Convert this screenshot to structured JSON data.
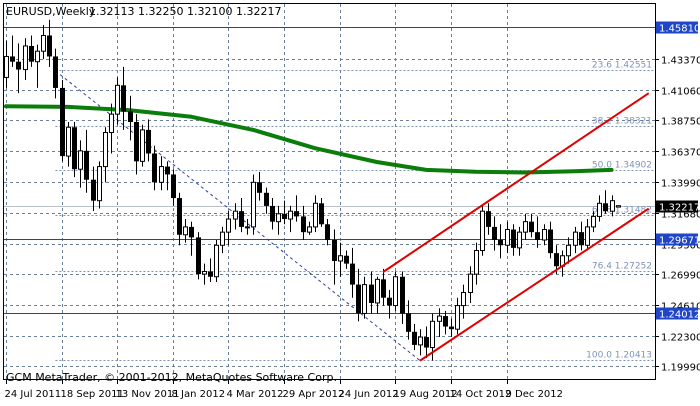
{
  "header": {
    "symbol": "EURUSD,Weekly",
    "ohlc": "1.32113 1.32250 1.32100 1.32217"
  },
  "footer": {
    "copyright": "GCM MetaTrader, © 2001-2012, MetaQuotes Software Corp."
  },
  "colors": {
    "background": "#ffffff",
    "grid": "#6b8096",
    "candle": "#000000",
    "moving_average": "#0a7d0a",
    "channel": "#e00000",
    "horizontal_line": "#2f3fa0",
    "fib_line": "#7f93b7",
    "price_box": "#1f46c8"
  },
  "chart_data": {
    "type": "candlestick",
    "symbol": "EURUSD",
    "timeframe": "Weekly",
    "last_bar": {
      "open": 1.32113,
      "high": 1.3225,
      "low": 1.321,
      "close": 1.32217
    },
    "ylim": [
      1.19,
      1.476
    ],
    "y_ticks": [
      "1.43370",
      "1.41060",
      "1.38750",
      "1.36370",
      "1.33990",
      "1.31680",
      "1.29300",
      "1.26990",
      "1.24610",
      "1.22300",
      "1.19990"
    ],
    "x_ticks": [
      "24 Jul 2011",
      "18 Sep 2011",
      "13 Nov 2011",
      "8 Jan 2012",
      "4 Mar 2012",
      "29 Apr 2012",
      "24 Jun 2012",
      "19 Aug 2012",
      "14 Oct 2012",
      "9 Dec 2012"
    ],
    "candles": [
      [
        1.42,
        1.448,
        1.412,
        1.436
      ],
      [
        1.436,
        1.452,
        1.428,
        1.432
      ],
      [
        1.432,
        1.446,
        1.408,
        1.426
      ],
      [
        1.426,
        1.45,
        1.418,
        1.444
      ],
      [
        1.444,
        1.452,
        1.428,
        1.432
      ],
      [
        1.432,
        1.445,
        1.412,
        1.44
      ],
      [
        1.44,
        1.46,
        1.434,
        1.452
      ],
      [
        1.452,
        1.464,
        1.428,
        1.436
      ],
      [
        1.436,
        1.442,
        1.404,
        1.412
      ],
      [
        1.412,
        1.418,
        1.356,
        1.36
      ],
      [
        1.36,
        1.386,
        1.352,
        1.382
      ],
      [
        1.382,
        1.386,
        1.344,
        1.35
      ],
      [
        1.35,
        1.372,
        1.336,
        1.364
      ],
      [
        1.364,
        1.38,
        1.332,
        1.342
      ],
      [
        1.342,
        1.352,
        1.318,
        1.326
      ],
      [
        1.326,
        1.356,
        1.32,
        1.352
      ],
      [
        1.352,
        1.382,
        1.34,
        1.378
      ],
      [
        1.378,
        1.4,
        1.362,
        1.392
      ],
      [
        1.392,
        1.42,
        1.384,
        1.414
      ],
      [
        1.414,
        1.428,
        1.38,
        1.394
      ],
      [
        1.394,
        1.406,
        1.372,
        1.386
      ],
      [
        1.386,
        1.392,
        1.346,
        1.356
      ],
      [
        1.356,
        1.384,
        1.352,
        1.38
      ],
      [
        1.38,
        1.388,
        1.356,
        1.362
      ],
      [
        1.362,
        1.368,
        1.334,
        1.34
      ],
      [
        1.34,
        1.36,
        1.334,
        1.352
      ],
      [
        1.352,
        1.356,
        1.334,
        1.346
      ],
      [
        1.346,
        1.35,
        1.322,
        1.328
      ],
      [
        1.328,
        1.332,
        1.292,
        1.3
      ],
      [
        1.3,
        1.312,
        1.294,
        1.306
      ],
      [
        1.306,
        1.31,
        1.284,
        1.298
      ],
      [
        1.298,
        1.302,
        1.266,
        1.27
      ],
      [
        1.27,
        1.278,
        1.262,
        1.272
      ],
      [
        1.272,
        1.282,
        1.264,
        1.268
      ],
      [
        1.268,
        1.296,
        1.264,
        1.292
      ],
      [
        1.292,
        1.306,
        1.286,
        1.302
      ],
      [
        1.302,
        1.318,
        1.292,
        1.312
      ],
      [
        1.312,
        1.324,
        1.304,
        1.318
      ],
      [
        1.318,
        1.328,
        1.302,
        1.306
      ],
      [
        1.306,
        1.312,
        1.3,
        1.306
      ],
      [
        1.306,
        1.346,
        1.3,
        1.34
      ],
      [
        1.34,
        1.348,
        1.326,
        1.332
      ],
      [
        1.332,
        1.336,
        1.316,
        1.322
      ],
      [
        1.322,
        1.328,
        1.304,
        1.31
      ],
      [
        1.31,
        1.322,
        1.3,
        1.316
      ],
      [
        1.316,
        1.326,
        1.308,
        1.312
      ],
      [
        1.312,
        1.322,
        1.302,
        1.318
      ],
      [
        1.318,
        1.33,
        1.31,
        1.314
      ],
      [
        1.314,
        1.322,
        1.296,
        1.302
      ],
      [
        1.302,
        1.31,
        1.3,
        1.306
      ],
      [
        1.306,
        1.33,
        1.302,
        1.324
      ],
      [
        1.324,
        1.328,
        1.306,
        1.308
      ],
      [
        1.308,
        1.312,
        1.292,
        1.296
      ],
      [
        1.296,
        1.304,
        1.262,
        1.28
      ],
      [
        1.28,
        1.294,
        1.268,
        1.284
      ],
      [
        1.284,
        1.288,
        1.274,
        1.278
      ],
      [
        1.278,
        1.29,
        1.252,
        1.262
      ],
      [
        1.262,
        1.274,
        1.234,
        1.24
      ],
      [
        1.24,
        1.268,
        1.236,
        1.262
      ],
      [
        1.262,
        1.272,
        1.24,
        1.248
      ],
      [
        1.248,
        1.268,
        1.24,
        1.266
      ],
      [
        1.266,
        1.274,
        1.246,
        1.252
      ],
      [
        1.252,
        1.258,
        1.236,
        1.246
      ],
      [
        1.246,
        1.272,
        1.242,
        1.268
      ],
      [
        1.268,
        1.272,
        1.232,
        1.24
      ],
      [
        1.24,
        1.25,
        1.22,
        1.226
      ],
      [
        1.226,
        1.232,
        1.212,
        1.216
      ],
      [
        1.216,
        1.228,
        1.208,
        1.222
      ],
      [
        1.222,
        1.23,
        1.206,
        1.214
      ],
      [
        1.214,
        1.24,
        1.204,
        1.234
      ],
      [
        1.234,
        1.244,
        1.222,
        1.238
      ],
      [
        1.238,
        1.242,
        1.224,
        1.23
      ],
      [
        1.23,
        1.236,
        1.222,
        1.228
      ],
      [
        1.228,
        1.252,
        1.224,
        1.246
      ],
      [
        1.246,
        1.262,
        1.236,
        1.256
      ],
      [
        1.256,
        1.276,
        1.248,
        1.27
      ],
      [
        1.27,
        1.294,
        1.262,
        1.288
      ],
      [
        1.288,
        1.322,
        1.284,
        1.318
      ],
      [
        1.318,
        1.324,
        1.3,
        1.306
      ],
      [
        1.306,
        1.314,
        1.288,
        1.296
      ],
      [
        1.296,
        1.308,
        1.282,
        1.292
      ],
      [
        1.292,
        1.31,
        1.286,
        1.304
      ],
      [
        1.304,
        1.308,
        1.284,
        1.29
      ],
      [
        1.29,
        1.306,
        1.284,
        1.302
      ],
      [
        1.302,
        1.316,
        1.296,
        1.31
      ],
      [
        1.31,
        1.316,
        1.298,
        1.302
      ],
      [
        1.302,
        1.314,
        1.29,
        1.296
      ],
      [
        1.296,
        1.308,
        1.292,
        1.304
      ],
      [
        1.304,
        1.31,
        1.282,
        1.286
      ],
      [
        1.286,
        1.292,
        1.27,
        1.276
      ],
      [
        1.276,
        1.288,
        1.268,
        1.284
      ],
      [
        1.284,
        1.298,
        1.278,
        1.292
      ],
      [
        1.292,
        1.306,
        1.286,
        1.302
      ],
      [
        1.302,
        1.31,
        1.288,
        1.292
      ],
      [
        1.292,
        1.312,
        1.288,
        1.306
      ],
      [
        1.306,
        1.318,
        1.302,
        1.314
      ],
      [
        1.314,
        1.33,
        1.31,
        1.324
      ],
      [
        1.324,
        1.334,
        1.316,
        1.318
      ],
      [
        1.318,
        1.33,
        1.314,
        1.326
      ],
      [
        1.32113,
        1.3225,
        1.321,
        1.32217
      ]
    ],
    "moving_average": [
      [
        0,
        1.398
      ],
      [
        10,
        1.3975
      ],
      [
        20,
        1.395
      ],
      [
        30,
        1.39
      ],
      [
        40,
        1.38
      ],
      [
        50,
        1.366
      ],
      [
        60,
        1.3555
      ],
      [
        68,
        1.3495
      ],
      [
        76,
        1.348
      ],
      [
        84,
        1.3475
      ],
      [
        92,
        1.3485
      ],
      [
        98,
        1.3495
      ]
    ],
    "channel_lines": [
      {
        "from": [
          61,
          1.2715
        ],
        "to": [
          104,
          1.408
        ]
      },
      {
        "from": [
          67,
          1.204
        ],
        "to": [
          104,
          1.32
        ]
      }
    ],
    "trend_line": {
      "from": [
        8,
        1.425
      ],
      "to": [
        67,
        1.204
      ]
    },
    "horizontal_lines": [
      {
        "price": 1.4581,
        "label": "1.45810"
      },
      {
        "price": 1.29671,
        "label": "1.29671"
      },
      {
        "price": 1.24012,
        "label": "1.24012"
      }
    ],
    "current_price": {
      "price": 1.32217,
      "label": "1.32217"
    },
    "fib_levels": [
      {
        "price": 1.42551,
        "label": "23.6 1.42551"
      },
      {
        "price": 1.38321,
        "label": "38.2 1.38321"
      },
      {
        "price": 1.34902,
        "label": "50.0 1.34902"
      },
      {
        "price": 1.31482,
        "label": "61.8 1.31482"
      },
      {
        "price": 1.27252,
        "label": "76.4 1.27252"
      },
      {
        "price": 1.20413,
        "label": "100.0 1.20413"
      }
    ]
  }
}
